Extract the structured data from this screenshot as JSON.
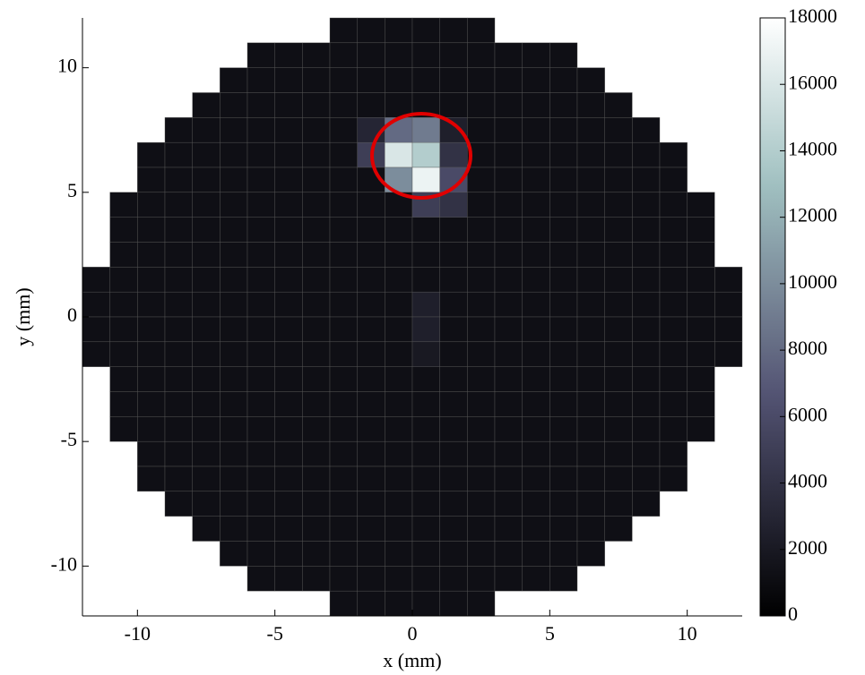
{
  "chart_data": {
    "type": "heatmap",
    "xlabel": "x (mm)",
    "ylabel": "y (mm)",
    "colormap": "bone",
    "xlim": [
      -12,
      12
    ],
    "ylim": [
      -12,
      12
    ],
    "xticks": [
      -10,
      -5,
      0,
      5,
      10
    ],
    "yticks": [
      -10,
      -5,
      0,
      5,
      10
    ],
    "clim": [
      0,
      18000
    ],
    "cticks": [
      0,
      2000,
      4000,
      6000,
      8000,
      10000,
      12000,
      14000,
      16000,
      18000
    ],
    "x": [
      -11.5,
      -10.5,
      -9.5,
      -8.5,
      -7.5,
      -6.5,
      -5.5,
      -4.5,
      -3.5,
      -2.5,
      -1.5,
      -0.5,
      0.5,
      1.5,
      2.5,
      3.5,
      4.5,
      5.5,
      6.5,
      7.5,
      8.5,
      9.5,
      10.5,
      11.5
    ],
    "y": [
      11.5,
      10.5,
      9.5,
      8.5,
      7.5,
      6.5,
      5.5,
      4.5,
      3.5,
      2.5,
      1.5,
      0.5,
      -0.5,
      -1.5,
      -2.5,
      -3.5,
      -4.5,
      -5.5,
      -6.5,
      -7.5,
      -8.5,
      -9.5,
      -10.5,
      -11.5
    ],
    "z": [
      [
        null,
        null,
        null,
        null,
        null,
        null,
        null,
        null,
        null,
        1200,
        1200,
        1200,
        1200,
        1200,
        1200,
        null,
        null,
        null,
        null,
        null,
        null,
        null,
        null,
        null
      ],
      [
        null,
        null,
        null,
        null,
        null,
        null,
        1200,
        1200,
        1200,
        1200,
        1200,
        1200,
        1200,
        1200,
        1200,
        1200,
        1200,
        1200,
        null,
        null,
        null,
        null,
        null,
        null
      ],
      [
        null,
        null,
        null,
        null,
        null,
        1200,
        1200,
        1200,
        1200,
        1200,
        1200,
        1200,
        1200,
        1200,
        1200,
        1200,
        1200,
        1200,
        1200,
        null,
        null,
        null,
        null,
        null
      ],
      [
        null,
        null,
        null,
        null,
        1200,
        1200,
        1200,
        1200,
        1200,
        1200,
        1200,
        1200,
        1200,
        1200,
        1200,
        1200,
        1200,
        1200,
        1200,
        1200,
        null,
        null,
        null,
        null
      ],
      [
        null,
        null,
        null,
        1200,
        1200,
        1200,
        1200,
        1200,
        1200,
        1200,
        3000,
        8000,
        9000,
        2500,
        1200,
        1200,
        1200,
        1200,
        1200,
        1200,
        1200,
        null,
        null,
        null
      ],
      [
        null,
        null,
        1200,
        1200,
        1200,
        1200,
        1200,
        1200,
        1200,
        1200,
        5000,
        16000,
        14000,
        4000,
        1200,
        1200,
        1200,
        1200,
        1200,
        1200,
        1200,
        1200,
        null,
        null
      ],
      [
        null,
        null,
        1200,
        1200,
        1200,
        1200,
        1200,
        1200,
        1200,
        1200,
        1200,
        10000,
        17000,
        6000,
        1200,
        1200,
        1200,
        1200,
        1200,
        1200,
        1200,
        1200,
        null,
        null
      ],
      [
        null,
        1200,
        1200,
        1200,
        1200,
        1200,
        1200,
        1200,
        1200,
        1200,
        1200,
        1200,
        5000,
        4000,
        1200,
        1200,
        1200,
        1200,
        1200,
        1200,
        1200,
        1200,
        1200,
        null
      ],
      [
        null,
        1200,
        1200,
        1200,
        1200,
        1200,
        1200,
        1200,
        1200,
        1200,
        1200,
        1200,
        1200,
        1200,
        1200,
        1200,
        1200,
        1200,
        1200,
        1200,
        1200,
        1200,
        1200,
        null
      ],
      [
        null,
        1200,
        1200,
        1200,
        1200,
        1200,
        1200,
        1200,
        1200,
        1200,
        1200,
        1200,
        1200,
        1200,
        1200,
        1200,
        1200,
        1200,
        1200,
        1200,
        1200,
        1200,
        1200,
        null
      ],
      [
        1200,
        1200,
        1200,
        1200,
        1200,
        1200,
        1200,
        1200,
        1200,
        1200,
        1200,
        1200,
        1200,
        1200,
        1200,
        1200,
        1200,
        1200,
        1200,
        1200,
        1200,
        1200,
        1200,
        1200
      ],
      [
        1200,
        1200,
        1200,
        1200,
        1200,
        1200,
        1200,
        1200,
        1200,
        1200,
        1200,
        1200,
        2500,
        1200,
        1200,
        1200,
        1200,
        1200,
        1200,
        1200,
        1200,
        1200,
        1200,
        1200
      ],
      [
        1200,
        1200,
        1200,
        1200,
        1200,
        1200,
        1200,
        1200,
        1200,
        1200,
        1200,
        1200,
        2500,
        1200,
        1200,
        1200,
        1200,
        1200,
        1200,
        1200,
        1200,
        1200,
        1200,
        1200
      ],
      [
        1200,
        1200,
        1200,
        1200,
        1200,
        1200,
        1200,
        1200,
        1200,
        1200,
        1200,
        1200,
        2000,
        1200,
        1200,
        1200,
        1200,
        1200,
        1200,
        1200,
        1200,
        1200,
        1200,
        1200
      ],
      [
        null,
        1200,
        1200,
        1200,
        1200,
        1200,
        1200,
        1200,
        1200,
        1200,
        1200,
        1200,
        1200,
        1200,
        1200,
        1200,
        1200,
        1200,
        1200,
        1200,
        1200,
        1200,
        1200,
        null
      ],
      [
        null,
        1200,
        1200,
        1200,
        1200,
        1200,
        1200,
        1200,
        1200,
        1200,
        1200,
        1200,
        1200,
        1200,
        1200,
        1200,
        1200,
        1200,
        1200,
        1200,
        1200,
        1200,
        1200,
        null
      ],
      [
        null,
        1200,
        1200,
        1200,
        1200,
        1200,
        1200,
        1200,
        1200,
        1200,
        1200,
        1200,
        1200,
        1200,
        1200,
        1200,
        1200,
        1200,
        1200,
        1200,
        1200,
        1200,
        1200,
        null
      ],
      [
        null,
        null,
        1200,
        1200,
        1200,
        1200,
        1200,
        1200,
        1200,
        1200,
        1200,
        1200,
        1200,
        1200,
        1200,
        1200,
        1200,
        1200,
        1200,
        1200,
        1200,
        1200,
        null,
        null
      ],
      [
        null,
        null,
        1200,
        1200,
        1200,
        1200,
        1200,
        1200,
        1200,
        1200,
        1200,
        1200,
        1200,
        1200,
        1200,
        1200,
        1200,
        1200,
        1200,
        1200,
        1200,
        1200,
        null,
        null
      ],
      [
        null,
        null,
        null,
        1200,
        1200,
        1200,
        1200,
        1200,
        1200,
        1200,
        1200,
        1200,
        1200,
        1200,
        1200,
        1200,
        1200,
        1200,
        1200,
        1200,
        1200,
        null,
        null,
        null
      ],
      [
        null,
        null,
        null,
        null,
        1200,
        1200,
        1200,
        1200,
        1200,
        1200,
        1200,
        1200,
        1200,
        1200,
        1200,
        1200,
        1200,
        1200,
        1200,
        1200,
        null,
        null,
        null,
        null
      ],
      [
        null,
        null,
        null,
        null,
        null,
        1200,
        1200,
        1200,
        1200,
        1200,
        1200,
        1200,
        1200,
        1200,
        1200,
        1200,
        1200,
        1200,
        1200,
        null,
        null,
        null,
        null,
        null
      ],
      [
        null,
        null,
        null,
        null,
        null,
        null,
        1200,
        1200,
        1200,
        1200,
        1200,
        1200,
        1200,
        1200,
        1200,
        1200,
        1200,
        1200,
        null,
        null,
        null,
        null,
        null,
        null
      ],
      [
        null,
        null,
        null,
        null,
        null,
        null,
        null,
        null,
        null,
        1200,
        1200,
        1200,
        1200,
        1200,
        1200,
        null,
        null,
        null,
        null,
        null,
        null,
        null,
        null,
        null
      ]
    ]
  }
}
